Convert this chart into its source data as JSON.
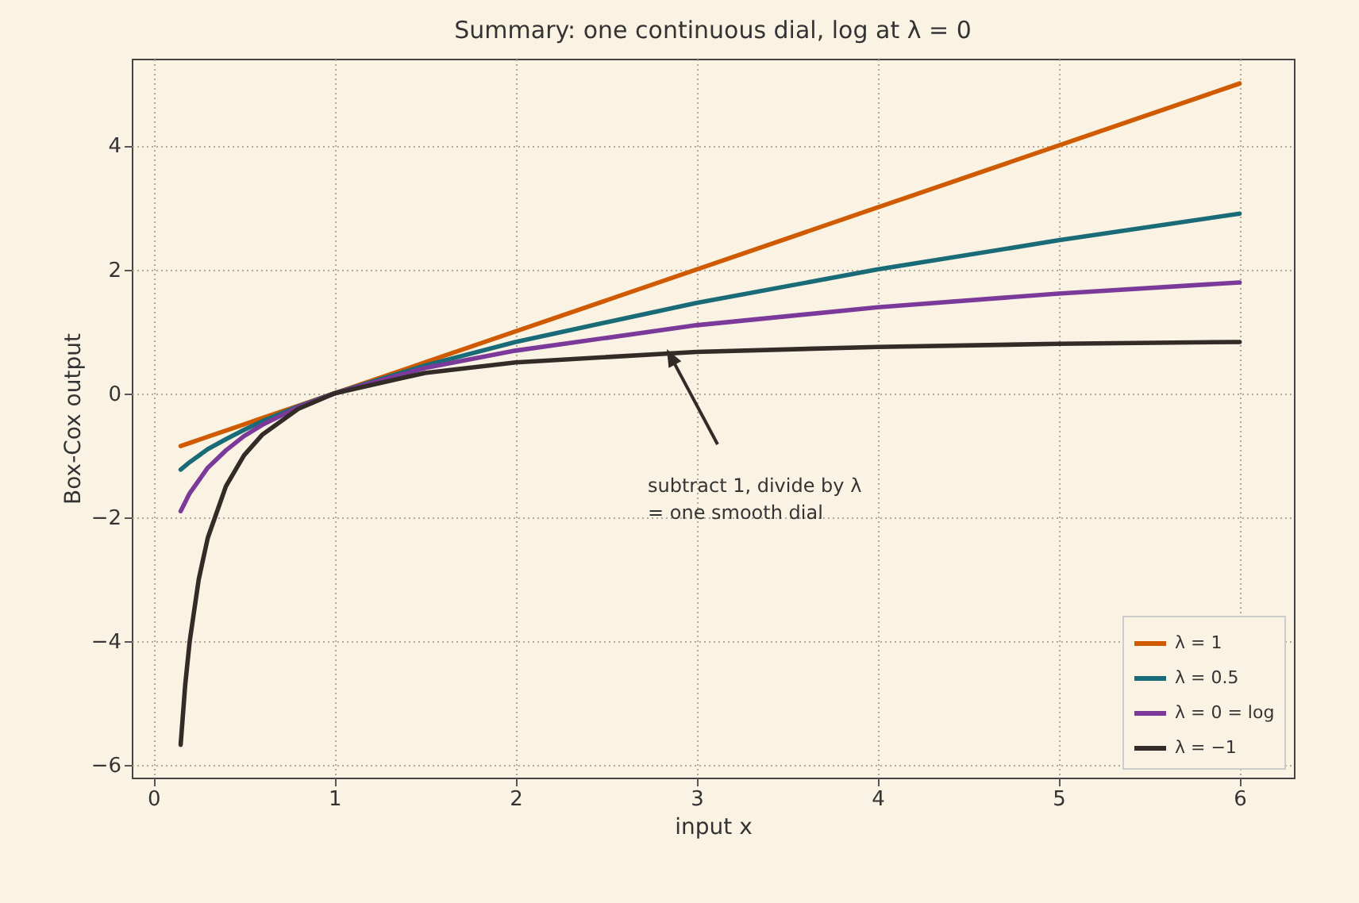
{
  "chart_data": {
    "type": "line",
    "title": "Summary: one continuous dial, log at λ = 0",
    "xlabel": "input x",
    "ylabel": "Box-Cox output",
    "x": [
      0.15,
      0.2,
      0.3,
      0.4,
      0.5,
      0.6,
      0.8,
      1,
      1.5,
      2,
      3,
      4,
      5,
      6
    ],
    "series": [
      {
        "name": "λ = 1",
        "color": "#d05a00",
        "values": [
          -0.85,
          -0.8,
          -0.7,
          -0.6,
          -0.5,
          -0.4,
          -0.2,
          0,
          0.5,
          1,
          2,
          3,
          4,
          5
        ]
      },
      {
        "name": "λ = 0.5",
        "color": "#1a6b78",
        "values": [
          -1.23,
          -1.11,
          -0.9,
          -0.74,
          -0.59,
          -0.45,
          -0.21,
          0,
          0.45,
          0.83,
          1.46,
          2,
          2.47,
          2.9
        ]
      },
      {
        "name": "λ = 0 = log",
        "color": "#7b3a9a",
        "values": [
          -1.9,
          -1.61,
          -1.2,
          -0.92,
          -0.69,
          -0.51,
          -0.22,
          0,
          0.41,
          0.69,
          1.1,
          1.39,
          1.61,
          1.79
        ]
      },
      {
        "name": "λ = −1",
        "color": "#332b28",
        "x": [
          0.15,
          0.175,
          0.2,
          0.25,
          0.3,
          0.4,
          0.5,
          0.6,
          0.8,
          1,
          1.5,
          2,
          3,
          4,
          5,
          6
        ],
        "values": [
          -5.67,
          -4.71,
          -4,
          -3,
          -2.33,
          -1.5,
          -1,
          -0.67,
          -0.25,
          0,
          0.33,
          0.5,
          0.67,
          0.75,
          0.8,
          0.83
        ]
      }
    ],
    "xlim": [
      -0.12,
      6.3
    ],
    "xticks": [
      0,
      1,
      2,
      3,
      4,
      5,
      6
    ],
    "ylim": [
      -6.2,
      5.4
    ],
    "yticks": [
      {
        "value": -6,
        "label": "−6"
      },
      {
        "value": -4,
        "label": "−4"
      },
      {
        "value": -2,
        "label": "−2"
      },
      0,
      2,
      4
    ],
    "annotations": [
      "subtract 1, divide by λ\n= one smooth dial"
    ],
    "grid": true,
    "legend": "bottom right",
    "line_style": "solid",
    "marker": "none"
  }
}
